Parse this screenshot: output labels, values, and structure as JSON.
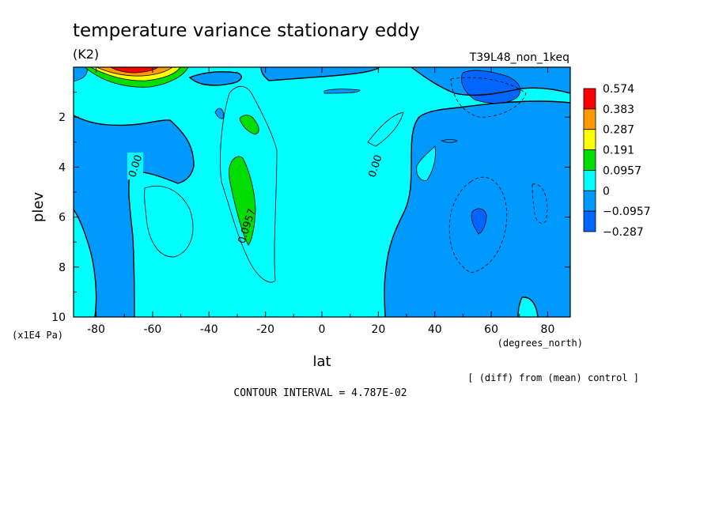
{
  "chart_data": {
    "type": "contour",
    "title": "temperature variance stationary eddy",
    "units": "(K2)",
    "experiment": "T39L48_non_1keq",
    "note": "[ (diff) from (mean) control ]",
    "contour_interval_text": "CONTOUR INTERVAL = 4.787E-02",
    "xlabel": "lat",
    "xunits": "(degrees_north)",
    "ylabel": "plev",
    "yunits": "(x1E4 Pa)",
    "xlim": [
      -88,
      88
    ],
    "ylim": [
      10,
      0
    ],
    "xticks": [
      -80,
      -60,
      -40,
      -20,
      0,
      20,
      40,
      60,
      80
    ],
    "yticks": [
      2,
      4,
      6,
      8,
      10
    ],
    "contour_labels": [
      {
        "text": "0.00",
        "lat": -65,
        "plev": 4.0
      },
      {
        "text": "0.0957",
        "lat": -25.5,
        "plev": 6.4
      },
      {
        "text": "0.00",
        "lat": 20,
        "plev": 4.0
      }
    ],
    "colorbar": {
      "levels": [
        "0.574",
        "0.383",
        "0.287",
        "0.191",
        "0.0957",
        "0",
        "−0.0957",
        "−0.287"
      ],
      "colors": [
        "#ff0000",
        "#ff9900",
        "#ffff00",
        "#00dd00",
        "#00ffff",
        "#0099ff",
        "#0066ff"
      ]
    },
    "fill_colors": {
      "positive_weak": "#00ffff",
      "negative_weak": "#0099ff",
      "negative_strong": "#0066ff",
      "positive_medium": "#00dd00",
      "positive_high": "#ffff00",
      "positive_higher": "#ff9900",
      "positive_max": "#ff0000"
    }
  }
}
